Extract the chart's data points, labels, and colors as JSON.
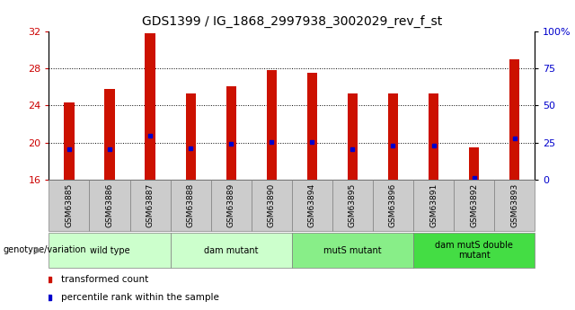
{
  "title": "GDS1399 / IG_1868_2997938_3002029_rev_f_st",
  "samples": [
    "GSM63885",
    "GSM63886",
    "GSM63887",
    "GSM63888",
    "GSM63889",
    "GSM63890",
    "GSM63894",
    "GSM63895",
    "GSM63896",
    "GSM63891",
    "GSM63892",
    "GSM63893"
  ],
  "bar_heights": [
    24.3,
    25.8,
    31.8,
    25.3,
    26.1,
    27.8,
    27.5,
    25.3,
    25.3,
    25.3,
    19.5,
    29.0
  ],
  "blue_marks": [
    19.3,
    19.3,
    20.7,
    19.4,
    19.9,
    20.1,
    20.1,
    19.3,
    19.7,
    19.7,
    16.2,
    20.5
  ],
  "ymin": 16,
  "ymax": 32,
  "yticks": [
    16,
    20,
    24,
    28,
    32
  ],
  "grid_lines": [
    20,
    24,
    28
  ],
  "right_yticks": [
    0,
    25,
    50,
    75,
    100
  ],
  "right_ylabels": [
    "0",
    "25",
    "50",
    "75",
    "100%"
  ],
  "bar_color": "#CC1100",
  "blue_color": "#0000CC",
  "groups": [
    {
      "label": "wild type",
      "start": 0,
      "end": 3,
      "color": "#CCFFCC"
    },
    {
      "label": "dam mutant",
      "start": 3,
      "end": 6,
      "color": "#CCFFCC"
    },
    {
      "label": "mutS mutant",
      "start": 6,
      "end": 9,
      "color": "#88EE88"
    },
    {
      "label": "dam mutS double\nmutant",
      "start": 9,
      "end": 12,
      "color": "#44DD44"
    }
  ],
  "genotype_label": "genotype/variation",
  "legend_items": [
    {
      "color": "#CC1100",
      "label": "transformed count"
    },
    {
      "color": "#0000CC",
      "label": "percentile rank within the sample"
    }
  ],
  "left_ytick_color": "#CC0000",
  "right_ytick_color": "#0000CC",
  "tick_label_bg": "#CCCCCC",
  "plot_bg": "#FFFFFF",
  "fig_bg": "#FFFFFF"
}
